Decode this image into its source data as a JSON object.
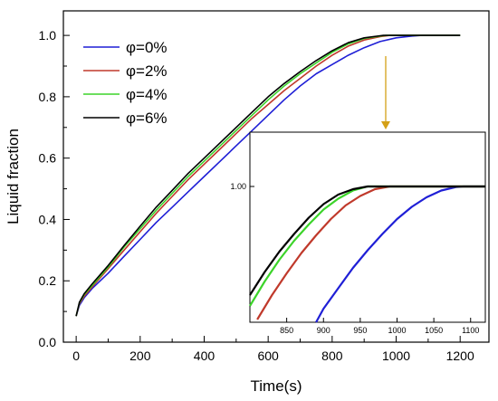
{
  "chart_data": [
    {
      "type": "line",
      "xlabel": "Time(s)",
      "ylabel": "Liquid fraction",
      "xlim": [
        -40,
        1290
      ],
      "ylim": [
        0.0,
        1.08
      ],
      "xticks": [
        0,
        200,
        400,
        600,
        800,
        1000,
        1200
      ],
      "yticks": [
        0.0,
        0.2,
        0.4,
        0.6,
        0.8,
        1.0
      ],
      "ytick_labels": [
        "0.0",
        "0.2",
        "0.4",
        "0.6",
        "0.8",
        "1.0"
      ],
      "grid": false,
      "legend_position": "top-left",
      "series": [
        {
          "name": "φ=0%",
          "color": "#1f1fd6",
          "x": [
            0,
            10,
            25,
            50,
            100,
            150,
            200,
            250,
            300,
            350,
            400,
            450,
            500,
            550,
            600,
            650,
            700,
            750,
            800,
            850,
            900,
            950,
            1000,
            1050,
            1080,
            1100,
            1200
          ],
          "y": [
            0.085,
            0.12,
            0.145,
            0.175,
            0.225,
            0.28,
            0.335,
            0.39,
            0.44,
            0.49,
            0.54,
            0.59,
            0.64,
            0.69,
            0.74,
            0.79,
            0.835,
            0.875,
            0.905,
            0.935,
            0.96,
            0.98,
            0.992,
            0.998,
            1.0,
            1.0,
            1.0
          ]
        },
        {
          "name": "φ=2%",
          "color": "#c0392b",
          "x": [
            0,
            10,
            25,
            50,
            100,
            150,
            200,
            250,
            300,
            350,
            400,
            450,
            500,
            550,
            600,
            650,
            700,
            750,
            800,
            850,
            900,
            950,
            980,
            1000,
            1100,
            1200
          ],
          "y": [
            0.085,
            0.125,
            0.15,
            0.18,
            0.24,
            0.3,
            0.36,
            0.42,
            0.475,
            0.53,
            0.58,
            0.63,
            0.68,
            0.73,
            0.775,
            0.82,
            0.86,
            0.9,
            0.935,
            0.965,
            0.985,
            0.996,
            1.0,
            1.0,
            1.0,
            1.0
          ]
        },
        {
          "name": "φ=4%",
          "color": "#3cd42a",
          "x": [
            0,
            10,
            25,
            50,
            100,
            150,
            200,
            250,
            300,
            350,
            400,
            450,
            500,
            550,
            600,
            650,
            700,
            750,
            800,
            850,
            900,
            950,
            970,
            1000,
            1100,
            1200
          ],
          "y": [
            0.085,
            0.128,
            0.155,
            0.185,
            0.245,
            0.31,
            0.37,
            0.43,
            0.485,
            0.54,
            0.59,
            0.64,
            0.69,
            0.74,
            0.79,
            0.835,
            0.875,
            0.91,
            0.945,
            0.972,
            0.99,
            0.998,
            1.0,
            1.0,
            1.0,
            1.0
          ]
        },
        {
          "name": "φ=6%",
          "color": "#000000",
          "x": [
            0,
            10,
            25,
            50,
            100,
            150,
            200,
            250,
            300,
            350,
            400,
            450,
            500,
            550,
            600,
            650,
            700,
            750,
            800,
            850,
            900,
            950,
            960,
            1000,
            1100,
            1200
          ],
          "y": [
            0.085,
            0.13,
            0.158,
            0.19,
            0.25,
            0.315,
            0.378,
            0.44,
            0.495,
            0.55,
            0.6,
            0.65,
            0.7,
            0.75,
            0.8,
            0.843,
            0.882,
            0.918,
            0.95,
            0.976,
            0.992,
            0.999,
            1.0,
            1.0,
            1.0,
            1.0
          ]
        }
      ],
      "arrow_color": "#d4a017"
    },
    {
      "type": "line",
      "xlim": [
        800,
        1120
      ],
      "ylim": [
        0.9,
        1.04
      ],
      "xticks": [
        850,
        900,
        950,
        1000,
        1050,
        1100
      ],
      "yticks": [
        1.0
      ],
      "ytick_labels": [
        "1.00"
      ],
      "grid": false,
      "series": [
        {
          "color": "#1f1fd6",
          "x": [
            890,
            900,
            920,
            940,
            960,
            980,
            1000,
            1020,
            1040,
            1060,
            1080,
            1090,
            1100,
            1120
          ],
          "y": [
            0.9,
            0.91,
            0.925,
            0.94,
            0.953,
            0.965,
            0.976,
            0.985,
            0.992,
            0.997,
            0.9995,
            1.0,
            1.0,
            1.0
          ]
        },
        {
          "color": "#c0392b",
          "x": [
            810,
            830,
            850,
            870,
            890,
            910,
            930,
            950,
            970,
            990,
            1000,
            1120
          ],
          "y": [
            0.902,
            0.92,
            0.936,
            0.951,
            0.964,
            0.976,
            0.986,
            0.993,
            0.998,
            1.0,
            1.0,
            1.0
          ]
        },
        {
          "color": "#3cd42a",
          "x": [
            800,
            820,
            840,
            860,
            880,
            900,
            920,
            940,
            960,
            980,
            1120
          ],
          "y": [
            0.912,
            0.93,
            0.946,
            0.96,
            0.972,
            0.983,
            0.991,
            0.997,
            1.0,
            1.0,
            1.0
          ]
        },
        {
          "color": "#000000",
          "x": [
            800,
            820,
            840,
            860,
            880,
            900,
            920,
            940,
            960,
            980,
            1120
          ],
          "y": [
            0.92,
            0.937,
            0.952,
            0.965,
            0.977,
            0.987,
            0.994,
            0.998,
            1.0,
            1.0,
            1.0
          ]
        }
      ]
    }
  ]
}
